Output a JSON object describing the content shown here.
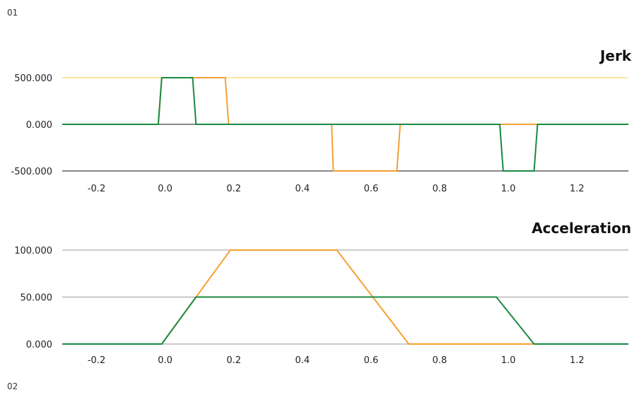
{
  "figure_labels": {
    "top": "01",
    "bottom": "02"
  },
  "colors": {
    "series_a": "#f5a031",
    "series_b": "#1a8a42",
    "gridline": "#9a9a9a",
    "highlight_line": "#f3d04e"
  },
  "chart_data": [
    {
      "type": "line",
      "title": "Jerk",
      "xlabel": "",
      "ylabel": "",
      "xlim": [
        -0.3,
        1.35
      ],
      "ylim": [
        -500,
        500
      ],
      "x_ticks": [
        -0.2,
        0.0,
        0.2,
        0.4,
        0.6,
        0.8,
        1.0,
        1.2
      ],
      "x_tick_labels": [
        "-0.2",
        "0.0",
        "0.2",
        "0.4",
        "0.6",
        "0.8",
        "1.0",
        "1.2"
      ],
      "y_ticks": [
        -500,
        0,
        500
      ],
      "y_tick_labels": [
        "-500.000",
        "0.000",
        "500.000"
      ],
      "grid": "horizontal",
      "series": [
        {
          "color": "#f5a031",
          "points": [
            [
              -0.3,
              0
            ],
            [
              -0.02,
              0
            ],
            [
              -0.01,
              500
            ],
            [
              0.175,
              500
            ],
            [
              0.185,
              0
            ],
            [
              0.485,
              0
            ],
            [
              0.49,
              -500
            ],
            [
              0.675,
              -500
            ],
            [
              0.685,
              0
            ],
            [
              0.98,
              0
            ],
            [
              0.99,
              0
            ],
            [
              1.08,
              0
            ],
            [
              1.09,
              0
            ],
            [
              1.35,
              0
            ]
          ]
        },
        {
          "color": "#1a8a42",
          "points": [
            [
              -0.3,
              0
            ],
            [
              -0.02,
              0
            ],
            [
              -0.01,
              500
            ],
            [
              0.08,
              500
            ],
            [
              0.09,
              0
            ],
            [
              0.975,
              0
            ],
            [
              0.985,
              -500
            ],
            [
              1.075,
              -500
            ],
            [
              1.085,
              0
            ],
            [
              1.35,
              0
            ]
          ]
        }
      ]
    },
    {
      "type": "line",
      "title": "Acceleration",
      "xlabel": "",
      "ylabel": "",
      "xlim": [
        -0.3,
        1.35
      ],
      "ylim": [
        0,
        100
      ],
      "x_ticks": [
        -0.2,
        0.0,
        0.2,
        0.4,
        0.6,
        0.8,
        1.0,
        1.2
      ],
      "x_tick_labels": [
        "-0.2",
        "0.0",
        "0.2",
        "0.4",
        "0.6",
        "0.8",
        "1.0",
        "1.2"
      ],
      "y_ticks": [
        0,
        50,
        100
      ],
      "y_tick_labels": [
        "0.000",
        "50.000",
        "100.000"
      ],
      "grid": "horizontal",
      "series": [
        {
          "color": "#f5a031",
          "points": [
            [
              -0.3,
              0
            ],
            [
              -0.01,
              0
            ],
            [
              0.19,
              100
            ],
            [
              0.5,
              100
            ],
            [
              0.71,
              0
            ],
            [
              1.35,
              0
            ]
          ]
        },
        {
          "color": "#1a8a42",
          "points": [
            [
              -0.3,
              0
            ],
            [
              -0.01,
              0
            ],
            [
              0.09,
              50
            ],
            [
              0.965,
              50
            ],
            [
              1.075,
              0
            ],
            [
              1.35,
              0
            ]
          ]
        }
      ]
    }
  ]
}
